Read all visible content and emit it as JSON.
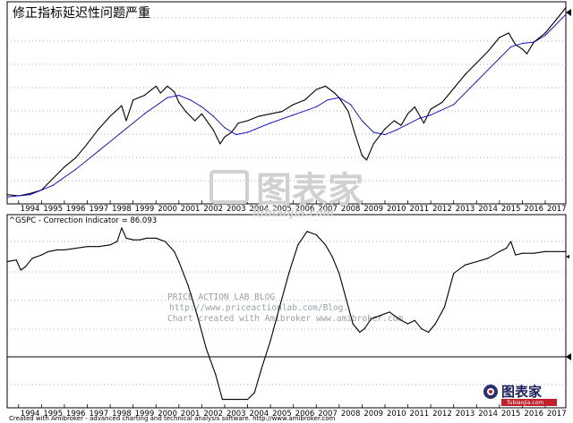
{
  "chart_data": [
    {
      "type": "line",
      "title": "修正指标延迟性问题严重",
      "x_tick_labels": [
        "1994",
        "1995",
        "1996",
        "1997",
        "1998",
        "1999",
        "2000",
        "2001",
        "2002",
        "2003",
        "2004",
        "2005",
        "2006",
        "2007",
        "2008",
        "2009",
        "2010",
        "2011",
        "2012",
        "2013",
        "2014",
        "2015",
        "2016",
        "2017"
      ],
      "grid": "dotted-horizontal",
      "series": [
        {
          "color": "#000000",
          "x": [
            1993.5,
            1994.0,
            1994.5,
            1995.0,
            1995.5,
            1996.0,
            1996.5,
            1997.0,
            1997.5,
            1998.0,
            1998.5,
            1998.7,
            1999.0,
            1999.5,
            2000.0,
            2000.2,
            2000.5,
            2000.8,
            2001.0,
            2001.3,
            2001.7,
            2002.0,
            2002.5,
            2002.8,
            2003.0,
            2003.3,
            2003.6,
            2004.0,
            2004.5,
            2005.0,
            2005.5,
            2006.0,
            2006.5,
            2007.0,
            2007.4,
            2007.8,
            2008.0,
            2008.4,
            2008.7,
            2009.0,
            2009.2,
            2009.5,
            2010.0,
            2010.4,
            2010.7,
            2011.0,
            2011.3,
            2011.7,
            2012.0,
            2012.5,
            2013.0,
            2013.5,
            2014.0,
            2014.5,
            2015.0,
            2015.4,
            2015.7,
            2016.0,
            2016.2,
            2016.5,
            2017.0,
            2017.5,
            2017.9
          ],
          "values": [
            8,
            7,
            9,
            12,
            22,
            32,
            40,
            52,
            65,
            76,
            85,
            72,
            90,
            94,
            102,
            96,
            102,
            97,
            88,
            80,
            72,
            78,
            64,
            52,
            58,
            62,
            70,
            72,
            76,
            78,
            80,
            86,
            90,
            99,
            102,
            96,
            92,
            80,
            60,
            42,
            38,
            52,
            65,
            72,
            68,
            78,
            84,
            70,
            82,
            88,
            100,
            112,
            122,
            132,
            144,
            148,
            138,
            134,
            130,
            140,
            148,
            160,
            170
          ]
        },
        {
          "color": "#0000cc",
          "x": [
            1993.5,
            1994.5,
            1995.5,
            1996.5,
            1997.5,
            1998.5,
            1999.5,
            2000.5,
            2001.0,
            2001.5,
            2002.0,
            2002.5,
            2003.0,
            2003.5,
            2004.0,
            2005.0,
            2006.0,
            2007.0,
            2007.5,
            2008.0,
            2008.5,
            2009.0,
            2009.5,
            2010.0,
            2010.5,
            2011.0,
            2011.5,
            2012.0,
            2013.0,
            2014.0,
            2015.0,
            2015.5,
            2016.0,
            2016.5,
            2017.0,
            2017.9
          ],
          "values": [
            6,
            8,
            16,
            30,
            46,
            62,
            78,
            92,
            94,
            90,
            84,
            76,
            66,
            60,
            62,
            70,
            77,
            84,
            90,
            92,
            86,
            72,
            62,
            60,
            64,
            69,
            74,
            77,
            86,
            106,
            126,
            136,
            139,
            140,
            146,
            164
          ]
        }
      ]
    },
    {
      "type": "line",
      "title": "^GSPC - Correction Indicator = 86.093",
      "x_tick_labels": [
        "1994",
        "1995",
        "1996",
        "1997",
        "1998",
        "1999",
        "2000",
        "2001",
        "2002",
        "2003",
        "2004",
        "2005",
        "2006",
        "2007",
        "2008",
        "2009",
        "2010",
        "2011",
        "2012",
        "2013",
        "2014",
        "2015",
        "2016",
        "2017"
      ],
      "grid": "dotted-horizontal",
      "series": [
        {
          "color": "#000000",
          "x": [
            1993.5,
            1993.9,
            1994.1,
            1994.3,
            1994.6,
            1995.0,
            1995.3,
            1995.7,
            1996.0,
            1996.5,
            1997.0,
            1997.5,
            1998.0,
            1998.3,
            1998.5,
            1998.7,
            1999.0,
            1999.3,
            1999.6,
            2000.0,
            2000.4,
            2000.8,
            2001.0,
            2001.4,
            2001.8,
            2002.2,
            2002.6,
            2002.9,
            2003.2,
            2003.6,
            2004.0,
            2004.3,
            2004.6,
            2005.0,
            2005.4,
            2005.8,
            2006.2,
            2006.6,
            2007.0,
            2007.4,
            2007.7,
            2008.0,
            2008.3,
            2008.6,
            2008.9,
            2009.1,
            2009.4,
            2009.8,
            2010.2,
            2010.6,
            2011.0,
            2011.3,
            2011.6,
            2011.9,
            2012.2,
            2012.6,
            2013.0,
            2013.5,
            2014.0,
            2014.5,
            2015.0,
            2015.3,
            2015.5,
            2015.7,
            2016.0,
            2016.5,
            2017.0,
            2017.9
          ],
          "values": [
            2,
            3,
            -3,
            -1,
            4,
            6,
            8,
            9,
            9,
            10,
            11,
            11,
            12,
            14,
            22,
            16,
            15,
            15,
            16,
            16,
            14,
            8,
            2,
            -12,
            -30,
            -50,
            -65,
            -80,
            -80,
            -80,
            -80,
            -76,
            -62,
            -45,
            -25,
            -5,
            12,
            20,
            18,
            12,
            5,
            -5,
            -20,
            -35,
            -40,
            -38,
            -32,
            -30,
            -28,
            -32,
            -35,
            -33,
            -38,
            -40,
            -35,
            -25,
            -5,
            0,
            2,
            4,
            8,
            10,
            14,
            6,
            7,
            7,
            8,
            8
          ]
        }
      ]
    }
  ],
  "watermark": {
    "blog_lines": [
      "PRICE ACTION LAB BLOG",
      "http://www.priceactionlab.com/Blog.",
      "Chart created with Amibroker www.amibroker.com"
    ],
    "center_brand": "图表家",
    "center_url": "Tubiaojia.com"
  },
  "logo": {
    "text": "图表家",
    "sub": "Tubiaojia.com"
  },
  "footer": "Created with Amibroker - advanced charting and technical analysis software. http://www.amibroker.com"
}
